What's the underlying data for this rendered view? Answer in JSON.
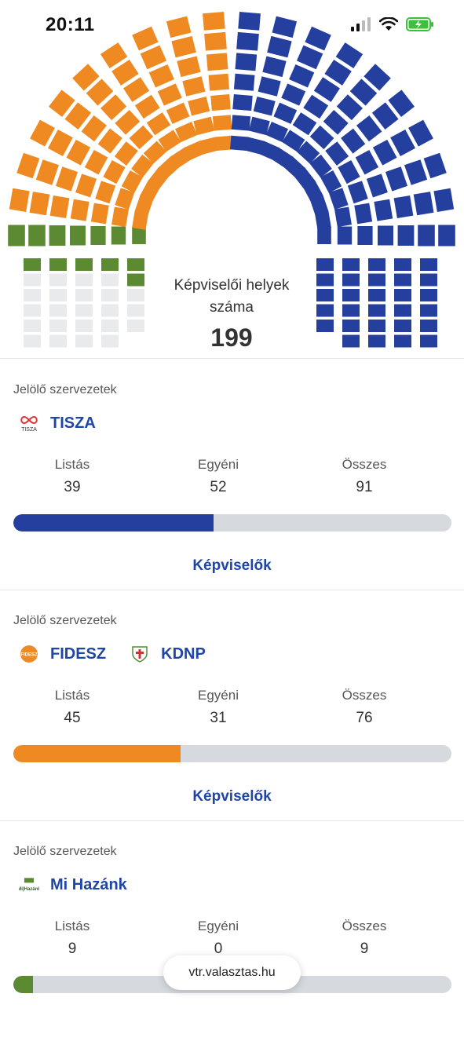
{
  "status_bar": {
    "time": "20:11"
  },
  "colors": {
    "tisza": "#253f9e",
    "fidesz": "#ef8a22",
    "mihazank": "#5c8a33",
    "empty": "#e9eaec",
    "accent": "#1f45a6"
  },
  "parliament": {
    "label": "Képviselői helyek száma",
    "total": "199"
  },
  "parties": [
    {
      "section_label": "Jelölő szervezetek",
      "orgs": [
        {
          "name": "TISZA",
          "icon": "tisza-logo-icon"
        }
      ],
      "listas_label": "Listás",
      "listas": "39",
      "egyeni_label": "Egyéni",
      "egyeni": "52",
      "osszes_label": "Összes",
      "osszes": "91",
      "bar_fraction": 0.457,
      "reps_link": "Képviselők"
    },
    {
      "section_label": "Jelölő szervezetek",
      "orgs": [
        {
          "name": "FIDESZ",
          "icon": "fidesz-logo-icon"
        },
        {
          "name": "KDNP",
          "icon": "kdnp-logo-icon"
        }
      ],
      "listas_label": "Listás",
      "listas": "45",
      "egyeni_label": "Egyéni",
      "egyeni": "31",
      "osszes_label": "Összes",
      "osszes": "76",
      "bar_fraction": 0.382,
      "reps_link": "Képviselők"
    },
    {
      "section_label": "Jelölő szervezetek",
      "orgs": [
        {
          "name": "Mi Hazánk",
          "icon": "mihazank-logo-icon"
        }
      ],
      "listas_label": "Listás",
      "listas": "9",
      "egyeni_label": "Egyéni",
      "egyeni": "0",
      "osszes_label": "Összes",
      "osszes": "9",
      "bar_fraction": 0.045,
      "reps_link": "Képviselők"
    }
  ],
  "url_bar": {
    "url": "vtr.valasztas.hu"
  }
}
